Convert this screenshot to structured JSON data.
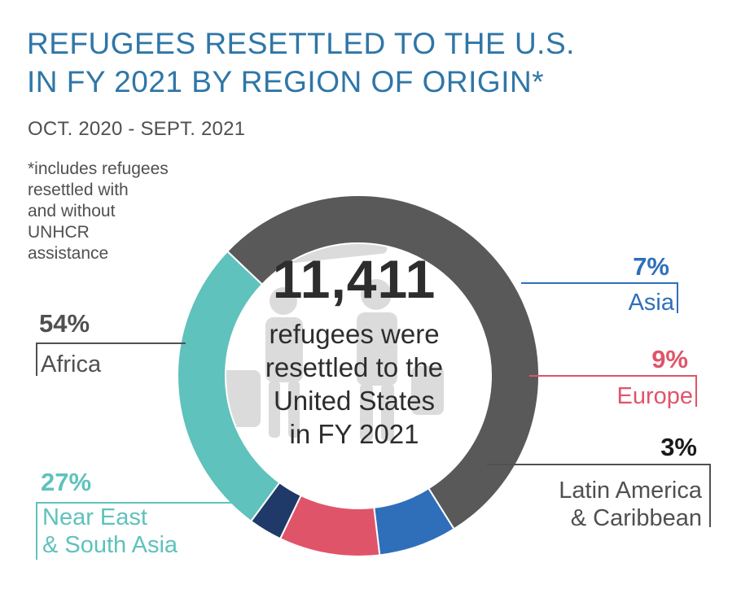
{
  "title_lines": [
    "REFUGEES RESETTLED TO THE U.S.",
    "IN FY 2021 BY REGION OF ORIGIN*"
  ],
  "subtitle": "OCT. 2020 - SEPT. 2021",
  "footnote_lines": [
    "*includes refugees",
    "resettled with",
    "and without",
    "UNHCR",
    "assistance"
  ],
  "center": {
    "total": "11,411",
    "text_lines": [
      "refugees were",
      "resettled to the",
      "United States",
      "in FY 2021"
    ]
  },
  "colors": {
    "Africa": "#595959",
    "Asia": "#2f6fba",
    "Europe": "#e0546a",
    "Latin America & Caribbean": "#1f3a68",
    "Near East & South Asia": "#5fc2bc",
    "title": "#2f76a7"
  },
  "chart_data": {
    "type": "pie",
    "subtype": "donut",
    "categories": [
      "Asia",
      "Europe",
      "Latin America & Caribbean",
      "Near East & South Asia",
      "Africa"
    ],
    "values": [
      7,
      9,
      3,
      27,
      54
    ],
    "value_labels": [
      "7%",
      "9%",
      "3%",
      "27%",
      "54%"
    ],
    "label_lines": {
      "Asia": [
        "Asia"
      ],
      "Europe": [
        "Europe"
      ],
      "Latin America & Caribbean": [
        "Latin America",
        "& Caribbean"
      ],
      "Near East & South Asia": [
        "Near East",
        "& South Asia"
      ],
      "Africa": [
        "Africa"
      ]
    },
    "title": "REFUGEES RESETTLED TO THE U.S. IN FY 2021 BY REGION OF ORIGIN*",
    "subtitle": "OCT. 2020 - SEPT. 2021"
  }
}
